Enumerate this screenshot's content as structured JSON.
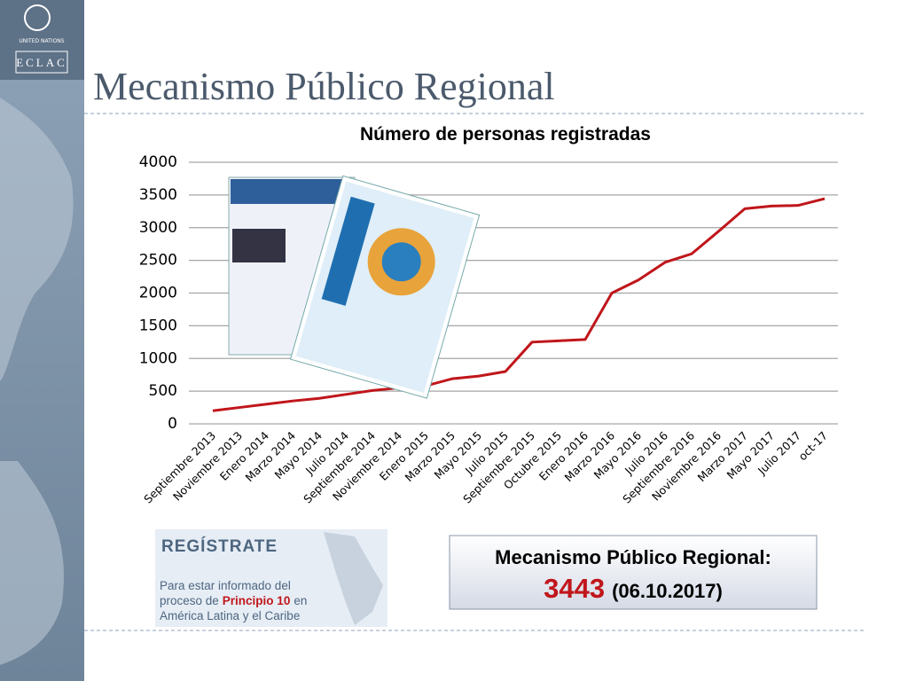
{
  "slide": {
    "title": "Mecanismo Público Regional",
    "logo_top": "UNITED NATIONS",
    "logo_bottom": "ECLAC"
  },
  "register": {
    "heading": "REGÍSTRATE",
    "line1": "Para estar informado del",
    "line2a": "proceso de",
    "line2b": "Principio 10",
    "line2c": "en",
    "line3": "América Latina y el Caribe"
  },
  "summary": {
    "label": "Mecanismo Público Regional:",
    "count": "3443",
    "date": "(06.10.2017)"
  },
  "chart_data": {
    "type": "line",
    "title": "Número de personas registradas",
    "categories": [
      "Septiembre 2013",
      "Noviembre 2013",
      "Enero 2014",
      "Marzo 2014",
      "Mayo 2014",
      "Julio 2014",
      "Septiembre 2014",
      "Noviembre 2014",
      "Enero 2015",
      "Marzo 2015",
      "Mayo 2015",
      "Julio 2015",
      "Septiembre 2015",
      "Octubre 2015",
      "Enero 2016",
      "Marzo 2016",
      "Mayo 2016",
      "Julio 2016",
      "Septiembre 2016",
      "Noviembre 2016",
      "Marzo 2017",
      "Mayo 2017",
      "Julio 2017",
      "oct-17"
    ],
    "values": [
      200,
      250,
      300,
      350,
      390,
      450,
      510,
      550,
      580,
      690,
      730,
      800,
      1250,
      1270,
      1290,
      2000,
      2200,
      2470,
      2600,
      2940,
      3290,
      3330,
      3340,
      3443
    ],
    "color": "#c0161b",
    "ylim": [
      0,
      4000
    ],
    "yticks": [
      0,
      500,
      1000,
      1500,
      2000,
      2500,
      3000,
      3500,
      4000
    ],
    "grid": true
  }
}
